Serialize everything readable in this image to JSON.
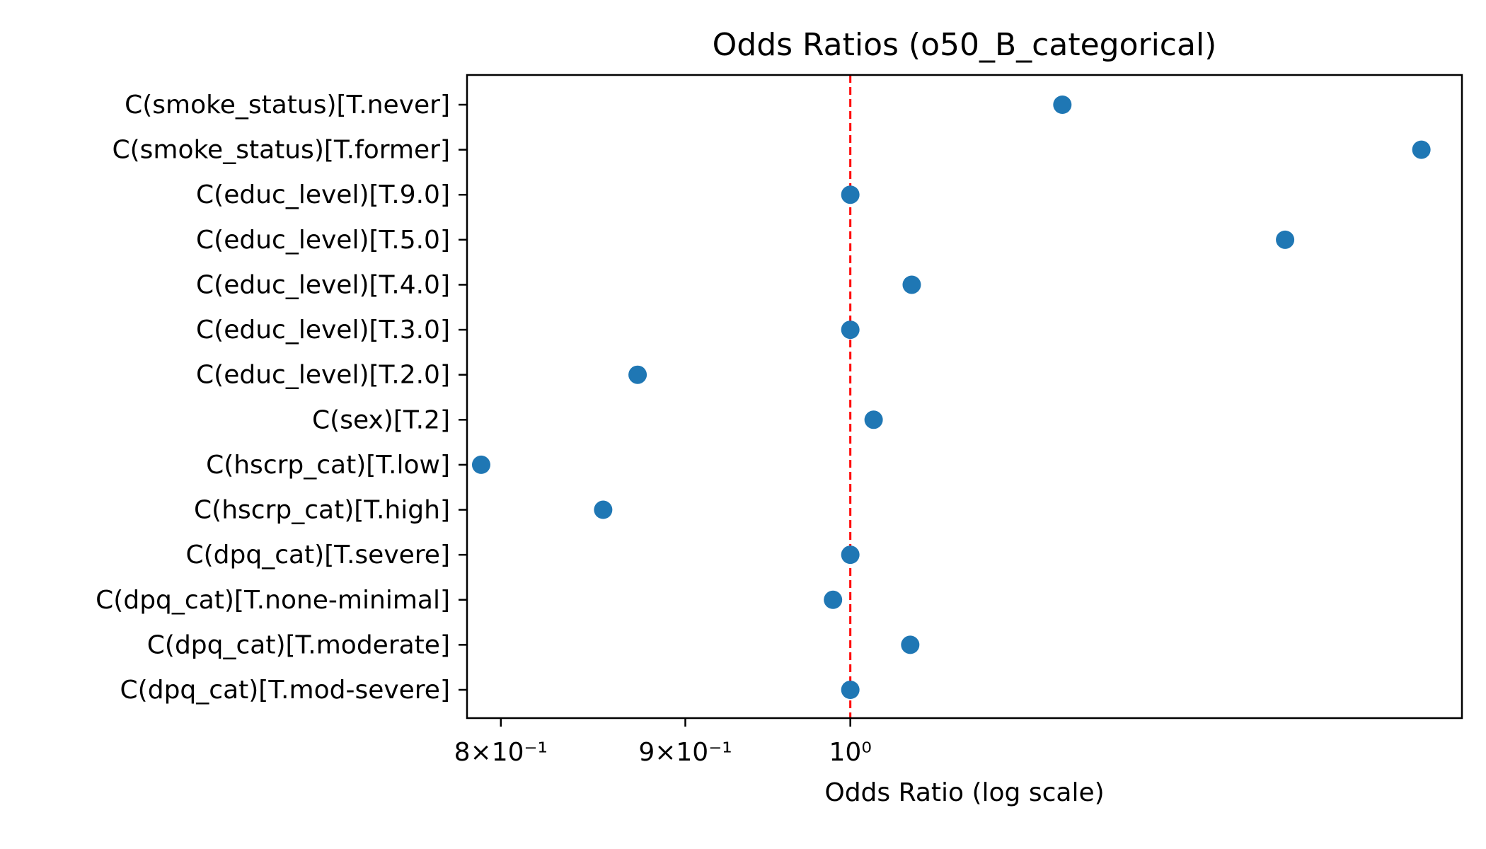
{
  "chart_data": {
    "type": "scatter",
    "title": "Odds Ratios (o50_B_categorical)",
    "xlabel": "Odds Ratio (log scale)",
    "ylabel": "",
    "x_scale": "log",
    "xlim": [
      0.7829,
      1.4778
    ],
    "reference_line": {
      "x": 1.0,
      "style": "dashed",
      "color": "#ff0000"
    },
    "point_color": "#1f77b4",
    "grid": false,
    "x_ticks": [
      {
        "value": 0.8,
        "label": "8×10⁻¹"
      },
      {
        "value": 0.9,
        "label": "9×10⁻¹"
      },
      {
        "value": 1.0,
        "label": "10⁰"
      }
    ],
    "categories": [
      "C(smoke_status)[T.never]",
      "C(smoke_status)[T.former]",
      "C(educ_level)[T.9.0]",
      "C(educ_level)[T.5.0]",
      "C(educ_level)[T.4.0]",
      "C(educ_level)[T.3.0]",
      "C(educ_level)[T.2.0]",
      "C(sex)[T.2]",
      "C(hscrp_cat)[T.low]",
      "C(hscrp_cat)[T.high]",
      "C(dpq_cat)[T.severe]",
      "C(dpq_cat)[T.none-minimal]",
      "C(dpq_cat)[T.moderate]",
      "C(dpq_cat)[T.mod-severe]"
    ],
    "values": [
      1.145,
      1.44,
      1.0,
      1.32,
      1.04,
      1.0,
      0.873,
      1.015,
      0.79,
      0.854,
      1.0,
      0.989,
      1.039,
      1.0
    ]
  }
}
